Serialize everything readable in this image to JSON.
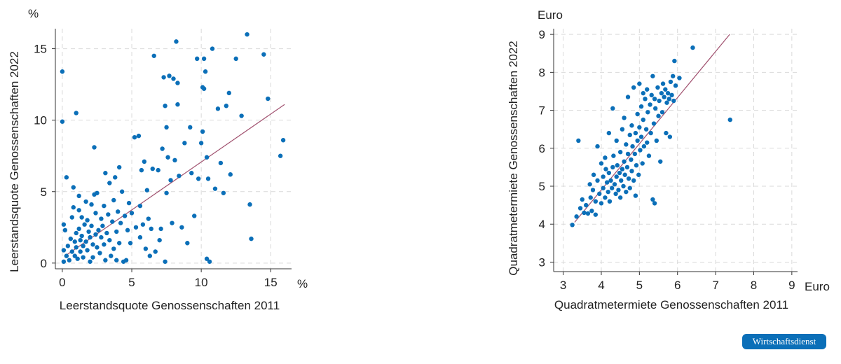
{
  "chart_data": [
    {
      "type": "scatter",
      "xlabel": "Leerstandsquote Genossenschaften 2011",
      "ylabel": "Leerstandsquote Genossenschaften 2022",
      "x_unit": "%",
      "y_unit": "%",
      "xlim": [
        -0.5,
        16.5
      ],
      "ylim": [
        -0.4,
        16.4
      ],
      "xticks": [
        0,
        5,
        10,
        15
      ],
      "yticks": [
        0,
        5,
        10,
        15
      ],
      "grid": true,
      "point_color": "#0b6fb8",
      "line_color": "#a0506e",
      "trend_line": [
        [
          0.2,
          0.5
        ],
        [
          16,
          11.1
        ]
      ],
      "points": [
        [
          0,
          13.4
        ],
        [
          0,
          9.9
        ],
        [
          1,
          10.5
        ],
        [
          0.3,
          6
        ],
        [
          0.1,
          2.7
        ],
        [
          0.2,
          2.3
        ],
        [
          0.4,
          1.2
        ],
        [
          0.1,
          0.9
        ],
        [
          0.3,
          0.5
        ],
        [
          0.1,
          0.1
        ],
        [
          0.5,
          0.2
        ],
        [
          0.6,
          1.7
        ],
        [
          0.7,
          0.8
        ],
        [
          0.7,
          3.2
        ],
        [
          0.8,
          3.9
        ],
        [
          0.8,
          5.3
        ],
        [
          0.9,
          1.5
        ],
        [
          0.9,
          0.5
        ],
        [
          1,
          2.1
        ],
        [
          1,
          1.1
        ],
        [
          1.1,
          0.3
        ],
        [
          1.2,
          4.7
        ],
        [
          1.2,
          3.7
        ],
        [
          1.2,
          2.4
        ],
        [
          1.3,
          1.6
        ],
        [
          1.3,
          0.8
        ],
        [
          1.4,
          3.2
        ],
        [
          1.4,
          1.9
        ],
        [
          1.5,
          1.2
        ],
        [
          1.5,
          0.4
        ],
        [
          1.6,
          2.7
        ],
        [
          1.7,
          4.3
        ],
        [
          1.7,
          1.5
        ],
        [
          1.8,
          0.9
        ],
        [
          1.8,
          3
        ],
        [
          1.9,
          2.2
        ],
        [
          2,
          0.1
        ],
        [
          2,
          1.8
        ],
        [
          2.1,
          4.1
        ],
        [
          2.1,
          2.6
        ],
        [
          2.2,
          1.3
        ],
        [
          2.2,
          0.4
        ],
        [
          2.3,
          4.8
        ],
        [
          2.3,
          8.1
        ],
        [
          2.4,
          3.5
        ],
        [
          2.4,
          2
        ],
        [
          2.5,
          1.1
        ],
        [
          2.5,
          4.9
        ],
        [
          2.6,
          2.3
        ],
        [
          2.7,
          0.7
        ],
        [
          2.8,
          3.1
        ],
        [
          2.8,
          1.8
        ],
        [
          2.9,
          2.6
        ],
        [
          3,
          1.3
        ],
        [
          3,
          4
        ],
        [
          3.1,
          6.3
        ],
        [
          3.1,
          0.2
        ],
        [
          3.2,
          2.1
        ],
        [
          3.3,
          3.4
        ],
        [
          3.4,
          5.6
        ],
        [
          3.4,
          1.6
        ],
        [
          3.5,
          0.5
        ],
        [
          3.6,
          2.9
        ],
        [
          3.7,
          1
        ],
        [
          3.7,
          4.4
        ],
        [
          3.8,
          6
        ],
        [
          3.9,
          2.2
        ],
        [
          3.9,
          0.2
        ],
        [
          4,
          3.6
        ],
        [
          4.1,
          6.7
        ],
        [
          4.1,
          1.4
        ],
        [
          4.2,
          2.8
        ],
        [
          4.3,
          5
        ],
        [
          4.4,
          0.1
        ],
        [
          4.5,
          3.3
        ],
        [
          4.6,
          0.2
        ],
        [
          4.7,
          2.3
        ],
        [
          4.8,
          4.2
        ],
        [
          4.9,
          1.4
        ],
        [
          5,
          3.5
        ],
        [
          5.2,
          8.8
        ],
        [
          5.3,
          2.5
        ],
        [
          5.5,
          8.9
        ],
        [
          5.6,
          4
        ],
        [
          5.6,
          1.8
        ],
        [
          5.7,
          6.5
        ],
        [
          5.8,
          2.7
        ],
        [
          5.9,
          7.1
        ],
        [
          6,
          1
        ],
        [
          6.1,
          5.1
        ],
        [
          6.2,
          3.1
        ],
        [
          6.3,
          0.5
        ],
        [
          6.4,
          2.4
        ],
        [
          6.5,
          6.6
        ],
        [
          6.6,
          14.5
        ],
        [
          6.7,
          0.8
        ],
        [
          6.9,
          6.5
        ],
        [
          7,
          1.6
        ],
        [
          7.1,
          2.4
        ],
        [
          7.2,
          8
        ],
        [
          7.3,
          13
        ],
        [
          7.4,
          0.1
        ],
        [
          7.4,
          11
        ],
        [
          7.5,
          9.5
        ],
        [
          7.5,
          4.9
        ],
        [
          7.6,
          7.4
        ],
        [
          7.7,
          13.1
        ],
        [
          7.8,
          5.8
        ],
        [
          7.9,
          2.8
        ],
        [
          8,
          12.9
        ],
        [
          8.1,
          7.2
        ],
        [
          8.2,
          15.5
        ],
        [
          8.3,
          11.1
        ],
        [
          8.3,
          12.6
        ],
        [
          8.4,
          6.1
        ],
        [
          8.6,
          2.5
        ],
        [
          8.8,
          8.4
        ],
        [
          9,
          1.4
        ],
        [
          9.2,
          9.5
        ],
        [
          9.3,
          6.3
        ],
        [
          9.5,
          3.3
        ],
        [
          9.7,
          14.3
        ],
        [
          9.8,
          5.9
        ],
        [
          10,
          8.4
        ],
        [
          10.1,
          12.3
        ],
        [
          10.1,
          9.2
        ],
        [
          10.2,
          14.3
        ],
        [
          10.2,
          12.2
        ],
        [
          10.3,
          13.4
        ],
        [
          10.4,
          7.4
        ],
        [
          10.4,
          0.3
        ],
        [
          10.5,
          5.9
        ],
        [
          10.6,
          0.1
        ],
        [
          10.8,
          15
        ],
        [
          11,
          5.2
        ],
        [
          11.2,
          10.8
        ],
        [
          11.4,
          7
        ],
        [
          11.6,
          4.9
        ],
        [
          11.8,
          11
        ],
        [
          12,
          11.9
        ],
        [
          12.1,
          6.2
        ],
        [
          12.5,
          14.3
        ],
        [
          12.9,
          10.3
        ],
        [
          13.3,
          16
        ],
        [
          13.5,
          4.1
        ],
        [
          13.6,
          1.7
        ],
        [
          14.5,
          14.6
        ],
        [
          14.8,
          11.5
        ],
        [
          15.7,
          7.5
        ],
        [
          15.9,
          8.6
        ]
      ]
    },
    {
      "type": "scatter",
      "xlabel": "Quadratmetermiete Genossenschaften 2011",
      "ylabel": "Quadratmetermiete Genossenschaften 2022",
      "x_unit": "Euro",
      "y_unit": "Euro",
      "xlim": [
        2.75,
        9.15
      ],
      "ylim": [
        2.75,
        9.15
      ],
      "xticks": [
        3,
        4,
        5,
        6,
        7,
        8,
        9
      ],
      "yticks": [
        3,
        4,
        5,
        6,
        7,
        8,
        9
      ],
      "grid": true,
      "point_color": "#0b6fb8",
      "line_color": "#a0506e",
      "trend_line": [
        [
          3.3,
          4.05
        ],
        [
          7.37,
          9
        ]
      ],
      "points": [
        [
          3.24,
          3.98
        ],
        [
          3.35,
          4.2
        ],
        [
          3.4,
          6.2
        ],
        [
          3.45,
          4.42
        ],
        [
          3.5,
          4.65
        ],
        [
          3.55,
          4.3
        ],
        [
          3.6,
          4.5
        ],
        [
          3.65,
          4.28
        ],
        [
          3.7,
          5.05
        ],
        [
          3.72,
          4.7
        ],
        [
          3.75,
          4.35
        ],
        [
          3.78,
          4.9
        ],
        [
          3.8,
          5.3
        ],
        [
          3.85,
          4.6
        ],
        [
          3.85,
          4.25
        ],
        [
          3.9,
          6.05
        ],
        [
          3.9,
          5.15
        ],
        [
          3.95,
          4.8
        ],
        [
          4,
          5.6
        ],
        [
          4,
          4.55
        ],
        [
          4.05,
          5.25
        ],
        [
          4.05,
          4.95
        ],
        [
          4.1,
          4.7
        ],
        [
          4.1,
          5.75
        ],
        [
          4.12,
          5.45
        ],
        [
          4.15,
          5.1
        ],
        [
          4.18,
          4.85
        ],
        [
          4.2,
          5.35
        ],
        [
          4.2,
          6.4
        ],
        [
          4.22,
          4.6
        ],
        [
          4.25,
          5.15
        ],
        [
          4.28,
          4.95
        ],
        [
          4.3,
          5.5
        ],
        [
          4.3,
          7.05
        ],
        [
          4.32,
          5.8
        ],
        [
          4.35,
          5.05
        ],
        [
          4.38,
          4.8
        ],
        [
          4.4,
          5.25
        ],
        [
          4.4,
          6.2
        ],
        [
          4.42,
          5.55
        ],
        [
          4.45,
          4.9
        ],
        [
          4.48,
          5.35
        ],
        [
          4.5,
          5.9
        ],
        [
          4.5,
          4.7
        ],
        [
          4.52,
          5.15
        ],
        [
          4.55,
          6.5
        ],
        [
          4.55,
          5.45
        ],
        [
          4.58,
          5
        ],
        [
          4.6,
          6.8
        ],
        [
          4.6,
          5.65
        ],
        [
          4.62,
          5.3
        ],
        [
          4.65,
          6.1
        ],
        [
          4.65,
          4.85
        ],
        [
          4.68,
          5.5
        ],
        [
          4.7,
          7.35
        ],
        [
          4.7,
          5.85
        ],
        [
          4.72,
          5.2
        ],
        [
          4.75,
          6.35
        ],
        [
          4.75,
          4.95
        ],
        [
          4.78,
          5.7
        ],
        [
          4.8,
          6.6
        ],
        [
          4.8,
          5.4
        ],
        [
          4.82,
          6.05
        ],
        [
          4.85,
          7.6
        ],
        [
          4.85,
          5.15
        ],
        [
          4.88,
          5.85
        ],
        [
          4.9,
          6.4
        ],
        [
          4.9,
          4.75
        ],
        [
          4.92,
          5.55
        ],
        [
          4.95,
          6.9
        ],
        [
          4.95,
          6.2
        ],
        [
          4.98,
          5.3
        ],
        [
          5,
          7.7
        ],
        [
          5,
          6.55
        ],
        [
          5.02,
          5.95
        ],
        [
          5.05,
          7.1
        ],
        [
          5.05,
          6.3
        ],
        [
          5.08,
          5.6
        ],
        [
          5.1,
          7.45
        ],
        [
          5.1,
          6.75
        ],
        [
          5.12,
          6.05
        ],
        [
          5.15,
          7.3
        ],
        [
          5.18,
          6.5
        ],
        [
          5.2,
          7.55
        ],
        [
          5.2,
          6.15
        ],
        [
          5.22,
          6.95
        ],
        [
          5.25,
          5.8
        ],
        [
          5.28,
          7.15
        ],
        [
          5.3,
          6.4
        ],
        [
          5.32,
          7.4
        ],
        [
          5.35,
          7.9
        ],
        [
          5.35,
          4.65
        ],
        [
          5.38,
          6.65
        ],
        [
          5.4,
          7.3
        ],
        [
          5.4,
          4.55
        ],
        [
          5.42,
          7.05
        ],
        [
          5.45,
          6.2
        ],
        [
          5.48,
          7.6
        ],
        [
          5.5,
          6.85
        ],
        [
          5.52,
          7.25
        ],
        [
          5.55,
          5.65
        ],
        [
          5.58,
          7.45
        ],
        [
          5.6,
          6.95
        ],
        [
          5.62,
          7.7
        ],
        [
          5.65,
          7.35
        ],
        [
          5.68,
          7.55
        ],
        [
          5.7,
          6.4
        ],
        [
          5.72,
          7.2
        ],
        [
          5.75,
          7.45
        ],
        [
          5.78,
          7.3
        ],
        [
          5.8,
          6.3
        ],
        [
          5.82,
          7.75
        ],
        [
          5.85,
          7.4
        ],
        [
          5.88,
          7.9
        ],
        [
          5.9,
          7.25
        ],
        [
          5.92,
          8.3
        ],
        [
          5.95,
          7.65
        ],
        [
          6.05,
          7.85
        ],
        [
          6.4,
          8.65
        ],
        [
          7.38,
          6.75
        ]
      ]
    }
  ],
  "badge": {
    "text": "Wirtschaftsdienst",
    "color": "#0b6fb8"
  }
}
